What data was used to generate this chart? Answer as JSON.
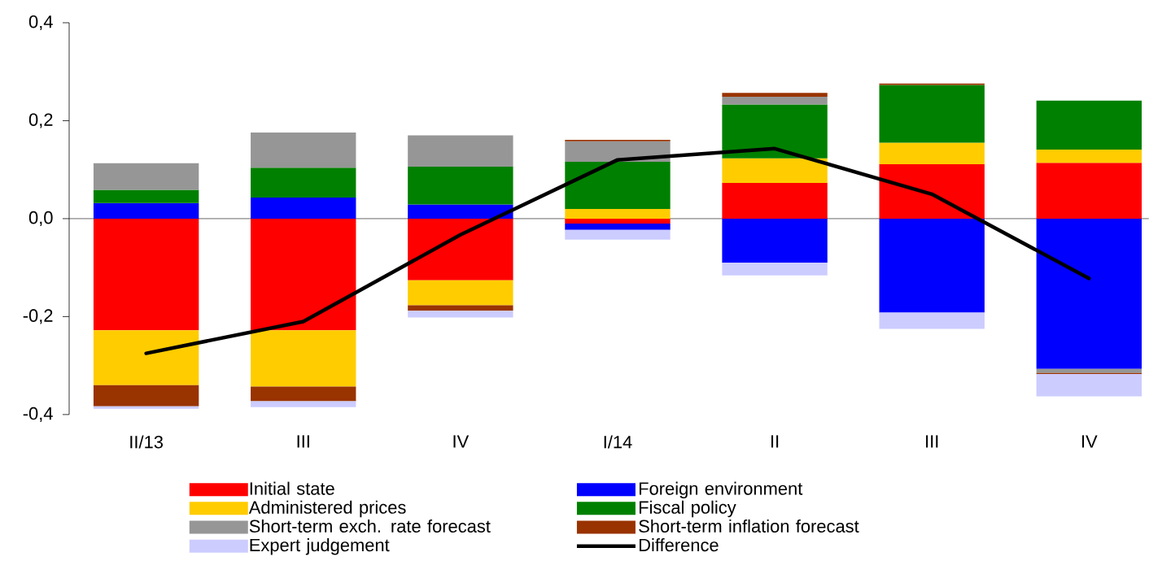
{
  "chart_data": {
    "type": "bar",
    "stacked": true,
    "legend": "bottom",
    "categories": [
      "II/13",
      "III",
      "IV",
      "I/14",
      "II",
      "III",
      "IV"
    ],
    "ylim": [
      -0.4,
      0.4
    ],
    "yticks": [
      {
        "value": -0.4,
        "label": "-0,4"
      },
      {
        "value": -0.2,
        "label": "-0,2"
      },
      {
        "value": 0.0,
        "label": "0,0"
      },
      {
        "value": 0.2,
        "label": "0,2"
      },
      {
        "value": 0.4,
        "label": "0,4"
      }
    ],
    "series": [
      {
        "name": "Initial state",
        "color": "#ff0000",
        "values": [
          -0.228,
          -0.228,
          -0.126,
          -0.01,
          0.073,
          0.111,
          0.114
        ]
      },
      {
        "name": "Foreign environment",
        "color": "#0000ff",
        "values": [
          0.032,
          0.043,
          0.029,
          -0.013,
          -0.09,
          -0.192,
          -0.307
        ]
      },
      {
        "name": "Administered prices",
        "color": "#ffcc00",
        "values": [
          -0.112,
          -0.115,
          -0.051,
          0.02,
          0.05,
          0.044,
          0.027
        ]
      },
      {
        "name": "Fiscal policy",
        "color": "#008000",
        "values": [
          0.027,
          0.061,
          0.077,
          0.096,
          0.11,
          0.118,
          0.1
        ]
      },
      {
        "name": "Short-term exch. rate forecast",
        "color": "#969696",
        "values": [
          0.054,
          0.072,
          0.064,
          0.042,
          0.016,
          0,
          -0.008
        ]
      },
      {
        "name": "Short-term inflation forecast",
        "color": "#993300",
        "values": [
          -0.043,
          -0.03,
          -0.011,
          0.003,
          0.008,
          0.003,
          -0.002
        ]
      },
      {
        "name": "Expert judgement",
        "color": "#ccccff",
        "values": [
          -0.005,
          -0.012,
          -0.014,
          -0.02,
          -0.026,
          -0.033,
          -0.046
        ]
      },
      {
        "name": "Difference",
        "type": "line",
        "color": "#000000",
        "marker": "none",
        "line_style": "solid",
        "values": [
          -0.275,
          -0.21,
          -0.033,
          0.12,
          0.143,
          0.05,
          -0.122
        ]
      }
    ]
  }
}
